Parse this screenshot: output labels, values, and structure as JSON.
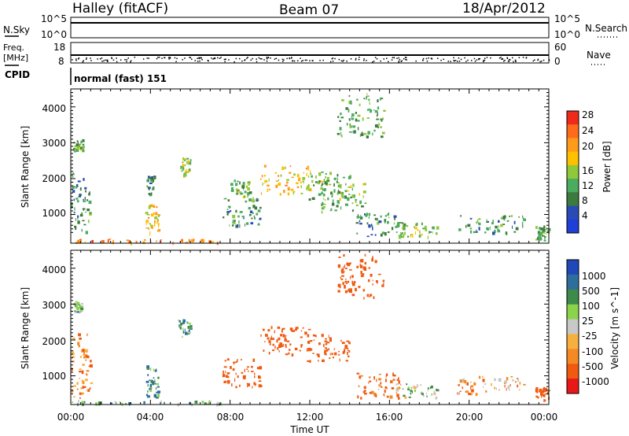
{
  "header": {
    "station": "Halley (fitACF)",
    "beam": "Beam 07",
    "date": "18/Apr/2012"
  },
  "status_panels": {
    "nsky_label": "N.Sky",
    "nsky_ticks": [
      "10^5",
      "10^0"
    ],
    "nsearch_label": "N.Search",
    "nsearch_ticks": [
      "10^5",
      "10^0"
    ],
    "freq_label": "Freq.",
    "freq_unit": "[MHz]",
    "freq_ticks": [
      "18",
      "8"
    ],
    "nave_label": "Nave",
    "nave_ticks": [
      "60",
      "0"
    ],
    "cpid_label": "CPID",
    "cpid_text": "normal (fast) 151"
  },
  "colors": {
    "power_scale": [
      "#1f3fd9",
      "#2a4bb5",
      "#3d7a3e",
      "#4bab5e",
      "#8fc83a",
      "#ffc000",
      "#ff9a1a",
      "#ff6b1a",
      "#ef2a1a"
    ],
    "velocity_scale": [
      "#e81818",
      "#f05a10",
      "#f58a24",
      "#f7b040",
      "#c8c8c8",
      "#8ad34a",
      "#3d8a4a",
      "#2e6e9a",
      "#2148b8"
    ]
  },
  "chart_data": [
    {
      "type": "heatmap",
      "panel": "power",
      "title": "",
      "ylabel": "Slant Range [km]",
      "xlabel": "",
      "x_ticks": [
        "00:00",
        "04:00",
        "08:00",
        "12:00",
        "16:00",
        "20:00",
        "00:00"
      ],
      "y_ticks": [
        "1000",
        "2000",
        "3000",
        "4000"
      ],
      "ylim": [
        200,
        4500
      ],
      "colorbar_label": "Power [dB]",
      "colorbar_ticks": [
        "4",
        "8",
        "12",
        "16",
        "20",
        "24",
        "28"
      ],
      "clusters": [
        {
          "t": [
            0.0,
            1.0
          ],
          "r": [
            500,
            2200
          ],
          "v": 10
        },
        {
          "t": [
            0.1,
            0.6
          ],
          "r": [
            2800,
            3100
          ],
          "v": 14
        },
        {
          "t": [
            3.7,
            4.4
          ],
          "r": [
            400,
            1300
          ],
          "v": 20
        },
        {
          "t": [
            3.8,
            4.2
          ],
          "r": [
            1600,
            2100
          ],
          "v": 10
        },
        {
          "t": [
            5.4,
            6.0
          ],
          "r": [
            2100,
            2600
          ],
          "v": 16
        },
        {
          "t": [
            7.5,
            9.5
          ],
          "r": [
            700,
            1500
          ],
          "v": 10
        },
        {
          "t": [
            8.0,
            9.0
          ],
          "r": [
            1500,
            2000
          ],
          "v": 14
        },
        {
          "t": [
            9.5,
            12.0
          ],
          "r": [
            1600,
            2400
          ],
          "v": 20
        },
        {
          "t": [
            11.8,
            14.0
          ],
          "r": [
            1400,
            2200
          ],
          "v": 12
        },
        {
          "t": [
            12.5,
            14.8
          ],
          "r": [
            1100,
            2000
          ],
          "v": 14
        },
        {
          "t": [
            13.3,
            15.7
          ],
          "r": [
            3200,
            4400
          ],
          "v": 12
        },
        {
          "t": [
            14.3,
            16.6
          ],
          "r": [
            400,
            1100
          ],
          "v": 10
        },
        {
          "t": [
            16.3,
            18.4
          ],
          "r": [
            400,
            800
          ],
          "v": 14
        },
        {
          "t": [
            19.3,
            22.8
          ],
          "r": [
            500,
            1000
          ],
          "v": 10
        },
        {
          "t": [
            0.0,
            7.5
          ],
          "r": [
            230,
            330
          ],
          "v": 24
        },
        {
          "t": [
            23.3,
            24.0
          ],
          "r": [
            300,
            700
          ],
          "v": 12
        }
      ]
    },
    {
      "type": "heatmap",
      "panel": "velocity",
      "title": "",
      "ylabel": "Slant Range [km]",
      "xlabel": "Time UT",
      "x_ticks": [
        "00:00",
        "04:00",
        "08:00",
        "12:00",
        "16:00",
        "20:00",
        "00:00"
      ],
      "y_ticks": [
        "1000",
        "2000",
        "3000",
        "4000"
      ],
      "ylim": [
        200,
        4500
      ],
      "colorbar_label": "Velocity [m s^-1]",
      "colorbar_ticks": [
        "1000",
        "500",
        "100",
        "25",
        "-25",
        "-100",
        "-500",
        "-1000"
      ],
      "clusters": [
        {
          "t": [
            0.0,
            1.0
          ],
          "r": [
            400,
            2200
          ],
          "v": -100
        },
        {
          "t": [
            0.1,
            0.6
          ],
          "r": [
            2800,
            3100
          ],
          "v": 50
        },
        {
          "t": [
            3.7,
            4.4
          ],
          "r": [
            400,
            1300
          ],
          "v": 100
        },
        {
          "t": [
            5.4,
            6.0
          ],
          "r": [
            2100,
            2600
          ],
          "v": 100
        },
        {
          "t": [
            7.5,
            9.5
          ],
          "r": [
            700,
            1500
          ],
          "v": -200
        },
        {
          "t": [
            9.5,
            12.0
          ],
          "r": [
            1600,
            2400
          ],
          "v": -250
        },
        {
          "t": [
            11.8,
            14.0
          ],
          "r": [
            1400,
            2200
          ],
          "v": -400
        },
        {
          "t": [
            13.3,
            15.7
          ],
          "r": [
            3200,
            4400
          ],
          "v": -300
        },
        {
          "t": [
            14.3,
            16.6
          ],
          "r": [
            400,
            1100
          ],
          "v": -150
        },
        {
          "t": [
            16.3,
            18.4
          ],
          "r": [
            400,
            800
          ],
          "v": 25
        },
        {
          "t": [
            19.3,
            22.8
          ],
          "r": [
            500,
            1000
          ],
          "v": -60
        },
        {
          "t": [
            0.0,
            7.5
          ],
          "r": [
            230,
            330
          ],
          "v": 60
        },
        {
          "t": [
            23.3,
            24.0
          ],
          "r": [
            300,
            700
          ],
          "v": -200
        }
      ]
    }
  ]
}
